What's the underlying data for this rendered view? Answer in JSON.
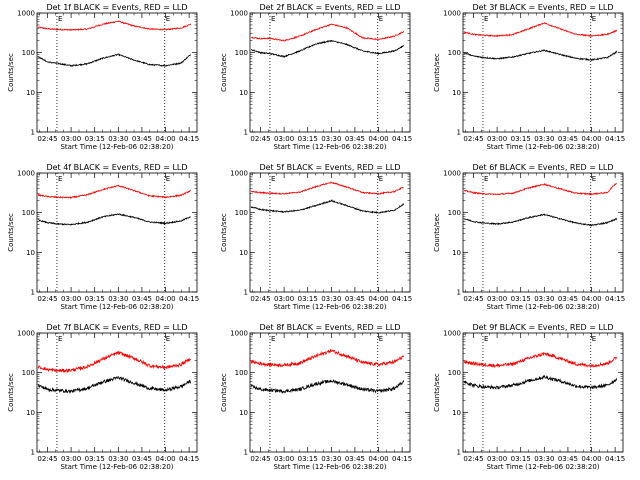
{
  "chart_data": {
    "type": "line",
    "x_tick_labels": [
      "02:45",
      "03:00",
      "03:15",
      "03:30",
      "03:45",
      "04:00",
      "04:15"
    ],
    "y_tick_labels": [
      "1",
      "10",
      "100",
      "1000"
    ],
    "ylabel": "Counts/sec",
    "xlabel": "Start Time (12-Feb-06 02:38:20)",
    "x_tick_minutes": [
      165,
      180,
      195,
      210,
      225,
      240,
      255
    ],
    "xlim_minutes": [
      158.33,
      260
    ],
    "ylim": [
      1,
      1000
    ],
    "y_log": true,
    "marker_label": "E",
    "marker_minutes": [
      171,
      239.5
    ],
    "grid": false,
    "legend": "none",
    "colors": {
      "events": "#000000",
      "lld": "#ff0000"
    },
    "panels": [
      {
        "title": "Det 1f BLACK = Events, RED = LLD",
        "lld_curve": [
          [
            159,
            440
          ],
          [
            165,
            400
          ],
          [
            171,
            385
          ],
          [
            180,
            375
          ],
          [
            190,
            390
          ],
          [
            200,
            520
          ],
          [
            210,
            620
          ],
          [
            220,
            470
          ],
          [
            230,
            395
          ],
          [
            240,
            380
          ],
          [
            250,
            420
          ],
          [
            256,
            520
          ]
        ],
        "events_curve": [
          [
            159,
            80
          ],
          [
            165,
            58
          ],
          [
            171,
            54
          ],
          [
            180,
            47
          ],
          [
            190,
            52
          ],
          [
            200,
            72
          ],
          [
            210,
            90
          ],
          [
            220,
            65
          ],
          [
            230,
            50
          ],
          [
            240,
            47
          ],
          [
            250,
            55
          ],
          [
            256,
            90
          ]
        ]
      },
      {
        "title": "Det 2f BLACK = Events, RED = LLD",
        "lld_curve": [
          [
            159,
            245
          ],
          [
            165,
            225
          ],
          [
            171,
            230
          ],
          [
            180,
            200
          ],
          [
            190,
            260
          ],
          [
            200,
            380
          ],
          [
            210,
            520
          ],
          [
            220,
            420
          ],
          [
            230,
            235
          ],
          [
            240,
            215
          ],
          [
            250,
            260
          ],
          [
            256,
            340
          ]
        ],
        "events_curve": [
          [
            159,
            120
          ],
          [
            165,
            100
          ],
          [
            171,
            95
          ],
          [
            180,
            80
          ],
          [
            190,
            110
          ],
          [
            200,
            165
          ],
          [
            210,
            200
          ],
          [
            220,
            160
          ],
          [
            230,
            110
          ],
          [
            240,
            95
          ],
          [
            250,
            110
          ],
          [
            256,
            150
          ]
        ]
      },
      {
        "title": "Det 3f BLACK = Events, RED = LLD",
        "lld_curve": [
          [
            159,
            330
          ],
          [
            165,
            290
          ],
          [
            171,
            275
          ],
          [
            180,
            265
          ],
          [
            190,
            285
          ],
          [
            200,
            400
          ],
          [
            210,
            560
          ],
          [
            220,
            400
          ],
          [
            230,
            290
          ],
          [
            240,
            265
          ],
          [
            250,
            290
          ],
          [
            256,
            360
          ]
        ],
        "events_curve": [
          [
            159,
            100
          ],
          [
            165,
            82
          ],
          [
            171,
            76
          ],
          [
            180,
            70
          ],
          [
            190,
            78
          ],
          [
            200,
            96
          ],
          [
            210,
            115
          ],
          [
            220,
            90
          ],
          [
            230,
            72
          ],
          [
            240,
            66
          ],
          [
            250,
            75
          ],
          [
            256,
            105
          ]
        ]
      },
      {
        "title": "Det 4f BLACK = Events, RED = LLD",
        "lld_curve": [
          [
            159,
            280
          ],
          [
            165,
            255
          ],
          [
            171,
            245
          ],
          [
            180,
            240
          ],
          [
            190,
            280
          ],
          [
            200,
            380
          ],
          [
            210,
            480
          ],
          [
            220,
            360
          ],
          [
            230,
            265
          ],
          [
            240,
            245
          ],
          [
            250,
            275
          ],
          [
            256,
            360
          ]
        ],
        "events_curve": [
          [
            159,
            65
          ],
          [
            165,
            56
          ],
          [
            171,
            52
          ],
          [
            180,
            50
          ],
          [
            190,
            57
          ],
          [
            200,
            78
          ],
          [
            210,
            92
          ],
          [
            220,
            76
          ],
          [
            230,
            58
          ],
          [
            240,
            54
          ],
          [
            250,
            62
          ],
          [
            256,
            80
          ]
        ]
      },
      {
        "title": "Det 5f BLACK = Events, RED = LLD",
        "lld_curve": [
          [
            159,
            340
          ],
          [
            165,
            320
          ],
          [
            171,
            310
          ],
          [
            180,
            300
          ],
          [
            190,
            330
          ],
          [
            200,
            450
          ],
          [
            210,
            580
          ],
          [
            220,
            440
          ],
          [
            230,
            320
          ],
          [
            240,
            300
          ],
          [
            250,
            340
          ],
          [
            256,
            440
          ]
        ],
        "events_curve": [
          [
            159,
            140
          ],
          [
            165,
            120
          ],
          [
            171,
            112
          ],
          [
            180,
            105
          ],
          [
            190,
            115
          ],
          [
            200,
            150
          ],
          [
            210,
            200
          ],
          [
            220,
            150
          ],
          [
            230,
            110
          ],
          [
            240,
            100
          ],
          [
            250,
            115
          ],
          [
            256,
            165
          ]
        ]
      },
      {
        "title": "Det 6f BLACK = Events, RED = LLD",
        "lld_curve": [
          [
            159,
            360
          ],
          [
            165,
            320
          ],
          [
            171,
            300
          ],
          [
            180,
            290
          ],
          [
            190,
            310
          ],
          [
            200,
            420
          ],
          [
            210,
            520
          ],
          [
            220,
            400
          ],
          [
            230,
            310
          ],
          [
            240,
            295
          ],
          [
            250,
            320
          ],
          [
            254,
            480
          ],
          [
            256,
            560
          ]
        ],
        "events_curve": [
          [
            159,
            70
          ],
          [
            165,
            60
          ],
          [
            171,
            55
          ],
          [
            180,
            52
          ],
          [
            190,
            58
          ],
          [
            200,
            75
          ],
          [
            210,
            90
          ],
          [
            220,
            70
          ],
          [
            230,
            55
          ],
          [
            240,
            48
          ],
          [
            250,
            56
          ],
          [
            256,
            70
          ]
        ]
      },
      {
        "title": "Det 7f BLACK = Events, RED = LLD",
        "lld_curve": [
          [
            159,
            140
          ],
          [
            165,
            120
          ],
          [
            171,
            112
          ],
          [
            180,
            115
          ],
          [
            190,
            140
          ],
          [
            200,
            220
          ],
          [
            210,
            320
          ],
          [
            220,
            230
          ],
          [
            230,
            150
          ],
          [
            240,
            135
          ],
          [
            250,
            160
          ],
          [
            256,
            230
          ]
        ],
        "events_curve": [
          [
            159,
            48
          ],
          [
            165,
            38
          ],
          [
            171,
            36
          ],
          [
            180,
            34
          ],
          [
            190,
            40
          ],
          [
            200,
            58
          ],
          [
            210,
            75
          ],
          [
            220,
            55
          ],
          [
            230,
            40
          ],
          [
            240,
            36
          ],
          [
            250,
            45
          ],
          [
            256,
            62
          ]
        ]
      },
      {
        "title": "Det 8f BLACK = Events, RED = LLD",
        "lld_curve": [
          [
            159,
            190
          ],
          [
            165,
            170
          ],
          [
            171,
            160
          ],
          [
            180,
            155
          ],
          [
            190,
            175
          ],
          [
            200,
            260
          ],
          [
            210,
            360
          ],
          [
            220,
            260
          ],
          [
            230,
            180
          ],
          [
            240,
            160
          ],
          [
            250,
            185
          ],
          [
            256,
            260
          ]
        ],
        "events_curve": [
          [
            159,
            45
          ],
          [
            165,
            38
          ],
          [
            171,
            36
          ],
          [
            180,
            34
          ],
          [
            190,
            38
          ],
          [
            200,
            52
          ],
          [
            210,
            62
          ],
          [
            220,
            50
          ],
          [
            230,
            38
          ],
          [
            240,
            34
          ],
          [
            250,
            40
          ],
          [
            256,
            58
          ]
        ]
      },
      {
        "title": "Det 9f BLACK = Events, RED = LLD",
        "lld_curve": [
          [
            159,
            190
          ],
          [
            165,
            170
          ],
          [
            171,
            160
          ],
          [
            180,
            150
          ],
          [
            190,
            165
          ],
          [
            200,
            230
          ],
          [
            210,
            300
          ],
          [
            220,
            230
          ],
          [
            230,
            165
          ],
          [
            240,
            150
          ],
          [
            250,
            170
          ],
          [
            256,
            240
          ]
        ],
        "events_curve": [
          [
            159,
            60
          ],
          [
            165,
            48
          ],
          [
            171,
            44
          ],
          [
            180,
            42
          ],
          [
            190,
            48
          ],
          [
            200,
            62
          ],
          [
            210,
            78
          ],
          [
            220,
            62
          ],
          [
            230,
            46
          ],
          [
            240,
            42
          ],
          [
            250,
            48
          ],
          [
            256,
            68
          ]
        ]
      }
    ]
  }
}
